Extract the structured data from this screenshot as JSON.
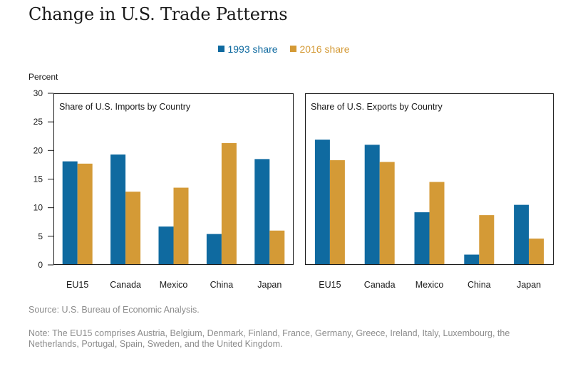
{
  "title": "Change in U.S. Trade Patterns",
  "unit_label": "Percent",
  "legend": [
    {
      "label": "1993 share",
      "color": "#0f6aa0"
    },
    {
      "label": "2016 share",
      "color": "#d49a36"
    }
  ],
  "source": "Source: U.S. Bureau of Economic Analysis.",
  "note": "Note: The EU15 comprises Austria, Belgium, Denmark, Finland, France, Germany, Greece, Ireland, Italy, Luxembourg, the Netherlands, Portugal, Spain, Sweden, and the United Kingdom.",
  "chart_data": [
    {
      "type": "bar",
      "title": "Share of U.S. Imports by Country",
      "categories": [
        "EU15",
        "Canada",
        "Mexico",
        "China",
        "Japan"
      ],
      "series": [
        {
          "name": "1993 share",
          "values": [
            18.1,
            19.3,
            6.7,
            5.4,
            18.5
          ]
        },
        {
          "name": "2016 share",
          "values": [
            17.7,
            12.8,
            13.5,
            21.3,
            6.0
          ]
        }
      ],
      "ylabel": "Percent",
      "ylim": [
        0,
        30
      ],
      "yticks": [
        0,
        5,
        10,
        15,
        20,
        25,
        30
      ]
    },
    {
      "type": "bar",
      "title": "Share of U.S. Exports by Country",
      "categories": [
        "EU15",
        "Canada",
        "Mexico",
        "China",
        "Japan"
      ],
      "series": [
        {
          "name": "1993 share",
          "values": [
            21.9,
            21.0,
            9.2,
            1.8,
            10.5
          ]
        },
        {
          "name": "2016 share",
          "values": [
            18.3,
            18.0,
            14.5,
            8.7,
            4.6
          ]
        }
      ],
      "ylim": [
        0,
        30
      ]
    }
  ]
}
